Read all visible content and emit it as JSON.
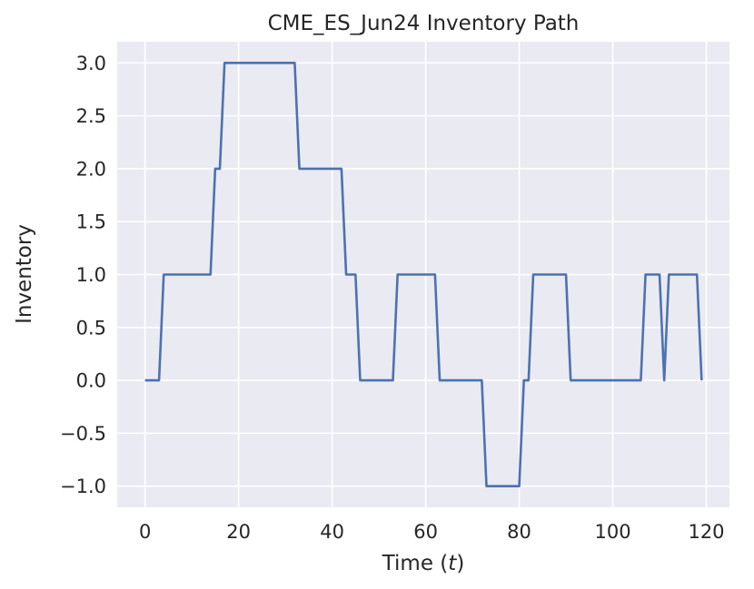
{
  "chart_data": {
    "type": "line",
    "title": "CME_ES_Jun24 Inventory Path",
    "xlabel_prefix": "Time (",
    "xlabel_var": "t",
    "xlabel_suffix": ")",
    "ylabel": "Inventory",
    "xlim": [
      -5.95,
      124.95
    ],
    "ylim": [
      -1.2,
      3.2
    ],
    "xticks": [
      0,
      20,
      40,
      60,
      80,
      100,
      120
    ],
    "yticks": [
      3.0,
      2.5,
      2.0,
      1.5,
      1.0,
      0.5,
      0.0,
      -0.5,
      -1.0
    ],
    "xtick_labels": [
      "0",
      "20",
      "40",
      "60",
      "80",
      "100",
      "120"
    ],
    "ytick_labels": [
      "3.0",
      "2.5",
      "2.0",
      "1.5",
      "1.0",
      "0.5",
      "0.0",
      "−0.5",
      "−1.0"
    ],
    "grid": true,
    "background": "#eaeaf2",
    "grid_color": "#ffffff",
    "series": [
      {
        "color": "#4c72b0",
        "x": [
          0,
          1,
          2,
          3,
          4,
          5,
          6,
          7,
          8,
          9,
          10,
          11,
          12,
          13,
          14,
          15,
          16,
          17,
          18,
          19,
          20,
          21,
          22,
          23,
          24,
          25,
          26,
          27,
          28,
          29,
          30,
          31,
          32,
          33,
          34,
          35,
          36,
          37,
          38,
          39,
          40,
          41,
          42,
          43,
          44,
          45,
          46,
          47,
          48,
          49,
          50,
          51,
          52,
          53,
          54,
          55,
          56,
          57,
          58,
          59,
          60,
          61,
          62,
          63,
          64,
          65,
          66,
          67,
          68,
          69,
          70,
          71,
          72,
          73,
          74,
          75,
          76,
          77,
          78,
          79,
          80,
          81,
          82,
          83,
          84,
          85,
          86,
          87,
          88,
          89,
          90,
          91,
          92,
          93,
          94,
          95,
          96,
          97,
          98,
          99,
          100,
          101,
          102,
          103,
          104,
          105,
          106,
          107,
          108,
          109,
          110,
          111,
          112,
          113,
          114,
          115,
          116,
          117,
          118,
          119
        ],
        "values": [
          0,
          0,
          0,
          0,
          1,
          1,
          1,
          1,
          1,
          1,
          1,
          1,
          1,
          1,
          1,
          2,
          2,
          3,
          3,
          3,
          3,
          3,
          3,
          3,
          3,
          3,
          3,
          3,
          3,
          3,
          3,
          3,
          3,
          2,
          2,
          2,
          2,
          2,
          2,
          2,
          2,
          2,
          2,
          1,
          1,
          1,
          0,
          0,
          0,
          0,
          0,
          0,
          0,
          0,
          1,
          1,
          1,
          1,
          1,
          1,
          1,
          1,
          1,
          0,
          0,
          0,
          0,
          0,
          0,
          0,
          0,
          0,
          0,
          -1,
          -1,
          -1,
          -1,
          -1,
          -1,
          -1,
          -1,
          0,
          0,
          1,
          1,
          1,
          1,
          1,
          1,
          1,
          1,
          0,
          0,
          0,
          0,
          0,
          0,
          0,
          0,
          0,
          0,
          0,
          0,
          0,
          0,
          0,
          0,
          1,
          1,
          1,
          1,
          0,
          1,
          1,
          1,
          1,
          1,
          1,
          1,
          0
        ]
      }
    ]
  }
}
